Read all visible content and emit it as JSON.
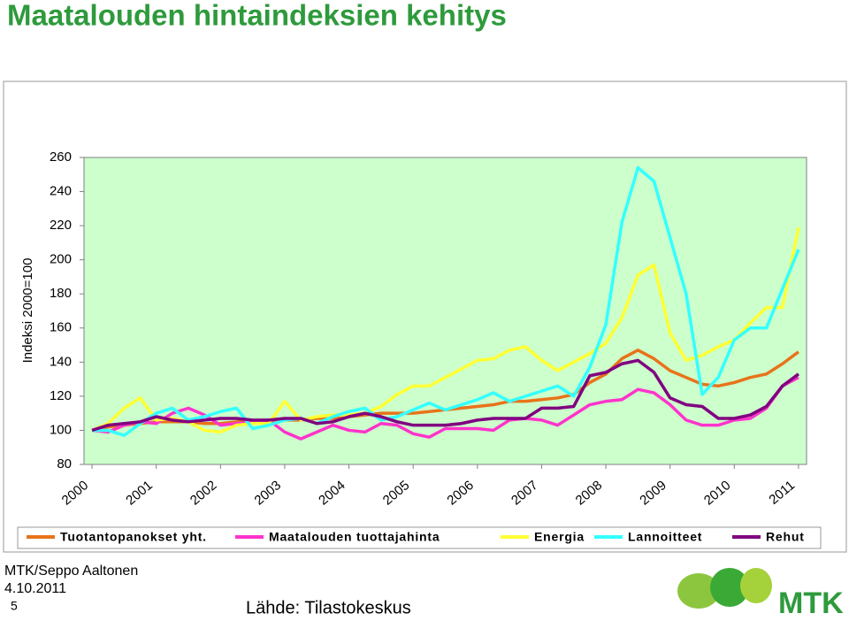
{
  "title": "Maatalouden hintaindeksien kehitys",
  "chart_data": {
    "type": "line",
    "ylabel": "Indeksi 2000=100",
    "x": [
      2000,
      2000.25,
      2000.5,
      2000.75,
      2001,
      2001.25,
      2001.5,
      2001.75,
      2002,
      2002.25,
      2002.5,
      2002.75,
      2003,
      2003.25,
      2003.5,
      2003.75,
      2004,
      2004.25,
      2004.5,
      2004.75,
      2005,
      2005.25,
      2005.5,
      2005.75,
      2006,
      2006.25,
      2006.5,
      2006.75,
      2007,
      2007.25,
      2007.5,
      2007.75,
      2008,
      2008.25,
      2008.5,
      2008.75,
      2009,
      2009.25,
      2009.5,
      2009.75,
      2010,
      2010.25,
      2010.5,
      2010.75,
      2011
    ],
    "xlim": [
      1999.875,
      2011.125
    ],
    "xticks": [
      2000,
      2001,
      2002,
      2003,
      2004,
      2005,
      2006,
      2007,
      2008,
      2009,
      2010,
      2011
    ],
    "ylim": [
      80,
      260
    ],
    "yticks": [
      80,
      100,
      120,
      140,
      160,
      180,
      200,
      220,
      240,
      260
    ],
    "series": [
      {
        "name": "Tuotantopanokset yht.",
        "color": "#e8731a",
        "values": [
          100,
          102,
          103,
          104,
          105,
          105,
          105,
          104,
          104,
          105,
          105,
          105,
          106,
          106,
          107,
          107,
          108,
          109,
          110,
          110,
          110,
          111,
          112,
          113,
          114,
          115,
          117,
          117,
          118,
          119,
          121,
          128,
          133,
          142,
          147,
          142,
          135,
          131,
          127,
          126,
          128,
          131,
          133,
          139,
          146
        ]
      },
      {
        "name": "Maatalouden tuottajahinta",
        "color": "#ff33cc",
        "values": [
          100,
          99,
          103,
          105,
          104,
          110,
          113,
          109,
          103,
          104,
          105,
          106,
          99,
          95,
          99,
          103,
          100,
          99,
          104,
          103,
          98,
          96,
          101,
          101,
          101,
          100,
          106,
          107,
          106,
          103,
          109,
          115,
          117,
          118,
          124,
          122,
          115,
          106,
          103,
          103,
          106,
          107,
          113,
          126,
          131
        ]
      },
      {
        "name": "Energia",
        "color": "#ffff33",
        "values": [
          100,
          104,
          113,
          119,
          106,
          107,
          105,
          100,
          99,
          103,
          104,
          104,
          117,
          106,
          108,
          109,
          109,
          110,
          114,
          121,
          126,
          126,
          131,
          136,
          141,
          142,
          147,
          149,
          141,
          135,
          140,
          145,
          151,
          166,
          191,
          197,
          157,
          141,
          144,
          149,
          153,
          163,
          172,
          172,
          219
        ]
      },
      {
        "name": "Lannoitteet",
        "color": "#33ffff",
        "values": [
          100,
          100,
          97,
          104,
          110,
          113,
          106,
          108,
          111,
          113,
          101,
          103,
          106,
          107,
          104,
          108,
          111,
          113,
          106,
          108,
          112,
          116,
          112,
          115,
          118,
          122,
          117,
          120,
          123,
          126,
          120,
          137,
          162,
          222,
          254,
          246,
          213,
          180,
          121,
          131,
          153,
          160,
          160,
          183,
          206
        ]
      },
      {
        "name": "Rehut",
        "color": "#800080",
        "values": [
          100,
          103,
          104,
          105,
          108,
          106,
          105,
          106,
          107,
          107,
          106,
          106,
          107,
          107,
          104,
          105,
          108,
          110,
          108,
          105,
          103,
          103,
          103,
          104,
          106,
          107,
          107,
          107,
          113,
          113,
          114,
          132,
          134,
          139,
          141,
          134,
          119,
          115,
          114,
          107,
          107,
          109,
          114,
          126,
          133
        ]
      }
    ]
  },
  "footer": {
    "author": "MTK/Seppo Aaltonen",
    "date": "4.10.2011",
    "page": "5",
    "source": "Lähde: Tilastokeskus"
  },
  "logo": {
    "text": "MTK"
  }
}
